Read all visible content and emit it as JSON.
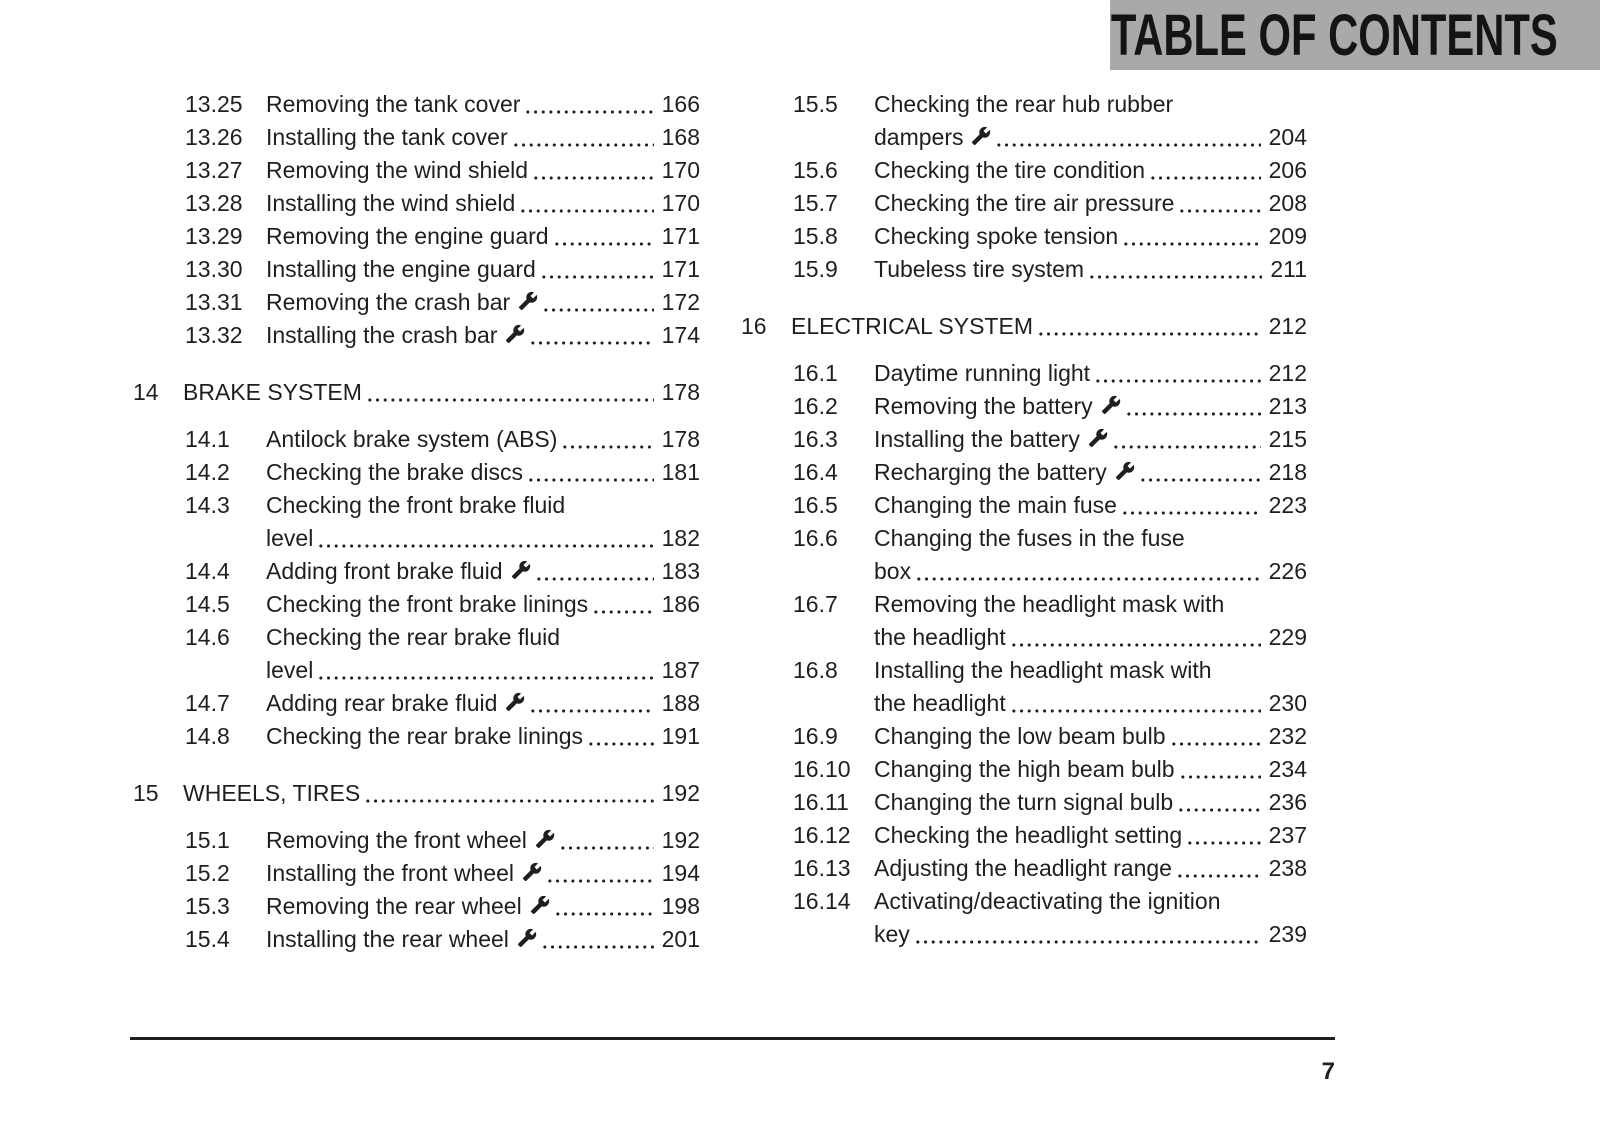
{
  "header": {
    "title": "TABLE OF CONTENTS"
  },
  "footer": {
    "page_number": "7"
  },
  "colors": {
    "header_bg": "#a9a9a9",
    "text": "#1f1f1f",
    "background": "#ffffff"
  },
  "icons": {
    "wrench": "open-end-wrench"
  },
  "columns": [
    {
      "blocks": [
        {
          "type": "subsections",
          "items": [
            {
              "num": "13.25",
              "lines": [
                {
                  "text": "Removing the tank cover",
                  "page": "166"
                }
              ]
            },
            {
              "num": "13.26",
              "lines": [
                {
                  "text": "Installing the tank cover",
                  "page": "168"
                }
              ]
            },
            {
              "num": "13.27",
              "lines": [
                {
                  "text": "Removing the wind shield",
                  "page": "170"
                }
              ]
            },
            {
              "num": "13.28",
              "lines": [
                {
                  "text": "Installing the wind shield",
                  "page": "170"
                }
              ]
            },
            {
              "num": "13.29",
              "lines": [
                {
                  "text": "Removing the engine guard",
                  "page": "171"
                }
              ]
            },
            {
              "num": "13.30",
              "lines": [
                {
                  "text": "Installing the engine guard",
                  "page": "171"
                }
              ]
            },
            {
              "num": "13.31",
              "lines": [
                {
                  "text": "Removing the crash bar",
                  "wrench": true,
                  "page": "172"
                }
              ]
            },
            {
              "num": "13.32",
              "lines": [
                {
                  "text": "Installing the crash bar",
                  "wrench": true,
                  "page": "174"
                }
              ]
            }
          ]
        },
        {
          "type": "chapter",
          "num": "14",
          "title": "BRAKE SYSTEM",
          "page": "178"
        },
        {
          "type": "subsections",
          "items": [
            {
              "num": "14.1",
              "lines": [
                {
                  "text": "Antilock brake system (ABS)",
                  "page": "178"
                }
              ]
            },
            {
              "num": "14.2",
              "lines": [
                {
                  "text": "Checking the brake discs",
                  "page": "181"
                }
              ]
            },
            {
              "num": "14.3",
              "lines": [
                {
                  "text": "Checking the front brake fluid"
                },
                {
                  "text": "level",
                  "page": "182"
                }
              ]
            },
            {
              "num": "14.4",
              "lines": [
                {
                  "text": "Adding front brake fluid",
                  "wrench": true,
                  "page": "183"
                }
              ]
            },
            {
              "num": "14.5",
              "lines": [
                {
                  "text": "Checking the front brake linings",
                  "page": "186"
                }
              ]
            },
            {
              "num": "14.6",
              "lines": [
                {
                  "text": "Checking the rear brake fluid"
                },
                {
                  "text": "level",
                  "page": "187"
                }
              ]
            },
            {
              "num": "14.7",
              "lines": [
                {
                  "text": "Adding rear brake fluid",
                  "wrench": true,
                  "page": "188"
                }
              ]
            },
            {
              "num": "14.8",
              "lines": [
                {
                  "text": "Checking the rear brake linings",
                  "page": "191"
                }
              ]
            }
          ]
        },
        {
          "type": "chapter",
          "num": "15",
          "title": "WHEELS, TIRES",
          "page": "192"
        },
        {
          "type": "subsections",
          "items": [
            {
              "num": "15.1",
              "lines": [
                {
                  "text": "Removing the front wheel",
                  "wrench": true,
                  "page": "192"
                }
              ]
            },
            {
              "num": "15.2",
              "lines": [
                {
                  "text": "Installing the front wheel",
                  "wrench": true,
                  "page": "194"
                }
              ]
            },
            {
              "num": "15.3",
              "lines": [
                {
                  "text": "Removing the rear wheel",
                  "wrench": true,
                  "page": "198"
                }
              ]
            },
            {
              "num": "15.4",
              "lines": [
                {
                  "text": "Installing the rear wheel",
                  "wrench": true,
                  "page": "201"
                }
              ]
            }
          ]
        }
      ]
    },
    {
      "blocks": [
        {
          "type": "subsections",
          "items": [
            {
              "num": "15.5",
              "lines": [
                {
                  "text": "Checking the rear hub rubber"
                },
                {
                  "text": "dampers",
                  "wrench": true,
                  "page": "204"
                }
              ]
            },
            {
              "num": "15.6",
              "lines": [
                {
                  "text": "Checking the tire condition",
                  "page": "206"
                }
              ]
            },
            {
              "num": "15.7",
              "lines": [
                {
                  "text": "Checking the tire air pressure",
                  "page": "208"
                }
              ]
            },
            {
              "num": "15.8",
              "lines": [
                {
                  "text": "Checking spoke tension",
                  "page": "209"
                }
              ]
            },
            {
              "num": "15.9",
              "lines": [
                {
                  "text": "Tubeless tire system",
                  "page": "211"
                }
              ]
            }
          ]
        },
        {
          "type": "chapter",
          "num": "16",
          "title": "ELECTRICAL SYSTEM",
          "page": "212"
        },
        {
          "type": "subsections",
          "items": [
            {
              "num": "16.1",
              "lines": [
                {
                  "text": "Daytime running light",
                  "page": "212"
                }
              ]
            },
            {
              "num": "16.2",
              "lines": [
                {
                  "text": "Removing the battery",
                  "wrench": true,
                  "page": "213"
                }
              ]
            },
            {
              "num": "16.3",
              "lines": [
                {
                  "text": "Installing the battery",
                  "wrench": true,
                  "page": "215"
                }
              ]
            },
            {
              "num": "16.4",
              "lines": [
                {
                  "text": "Recharging the battery",
                  "wrench": true,
                  "page": "218"
                }
              ]
            },
            {
              "num": "16.5",
              "lines": [
                {
                  "text": "Changing the main fuse",
                  "page": "223"
                }
              ]
            },
            {
              "num": "16.6",
              "lines": [
                {
                  "text": "Changing the fuses in the fuse"
                },
                {
                  "text": "box",
                  "page": "226"
                }
              ]
            },
            {
              "num": "16.7",
              "lines": [
                {
                  "text": "Removing the headlight mask with"
                },
                {
                  "text": "the headlight",
                  "page": "229"
                }
              ]
            },
            {
              "num": "16.8",
              "lines": [
                {
                  "text": "Installing the headlight mask with"
                },
                {
                  "text": "the headlight",
                  "page": "230"
                }
              ]
            },
            {
              "num": "16.9",
              "lines": [
                {
                  "text": "Changing the low beam bulb",
                  "page": "232"
                }
              ]
            },
            {
              "num": "16.10",
              "lines": [
                {
                  "text": "Changing the high beam bulb",
                  "page": "234"
                }
              ]
            },
            {
              "num": "16.11",
              "lines": [
                {
                  "text": "Changing the turn signal bulb",
                  "page": "236"
                }
              ]
            },
            {
              "num": "16.12",
              "lines": [
                {
                  "text": "Checking the headlight setting",
                  "page": "237"
                }
              ]
            },
            {
              "num": "16.13",
              "lines": [
                {
                  "text": "Adjusting the headlight range",
                  "page": "238"
                }
              ]
            },
            {
              "num": "16.14",
              "lines": [
                {
                  "text": "Activating/deactivating the ignition"
                },
                {
                  "text": "key",
                  "page": "239"
                }
              ]
            }
          ]
        }
      ]
    }
  ]
}
